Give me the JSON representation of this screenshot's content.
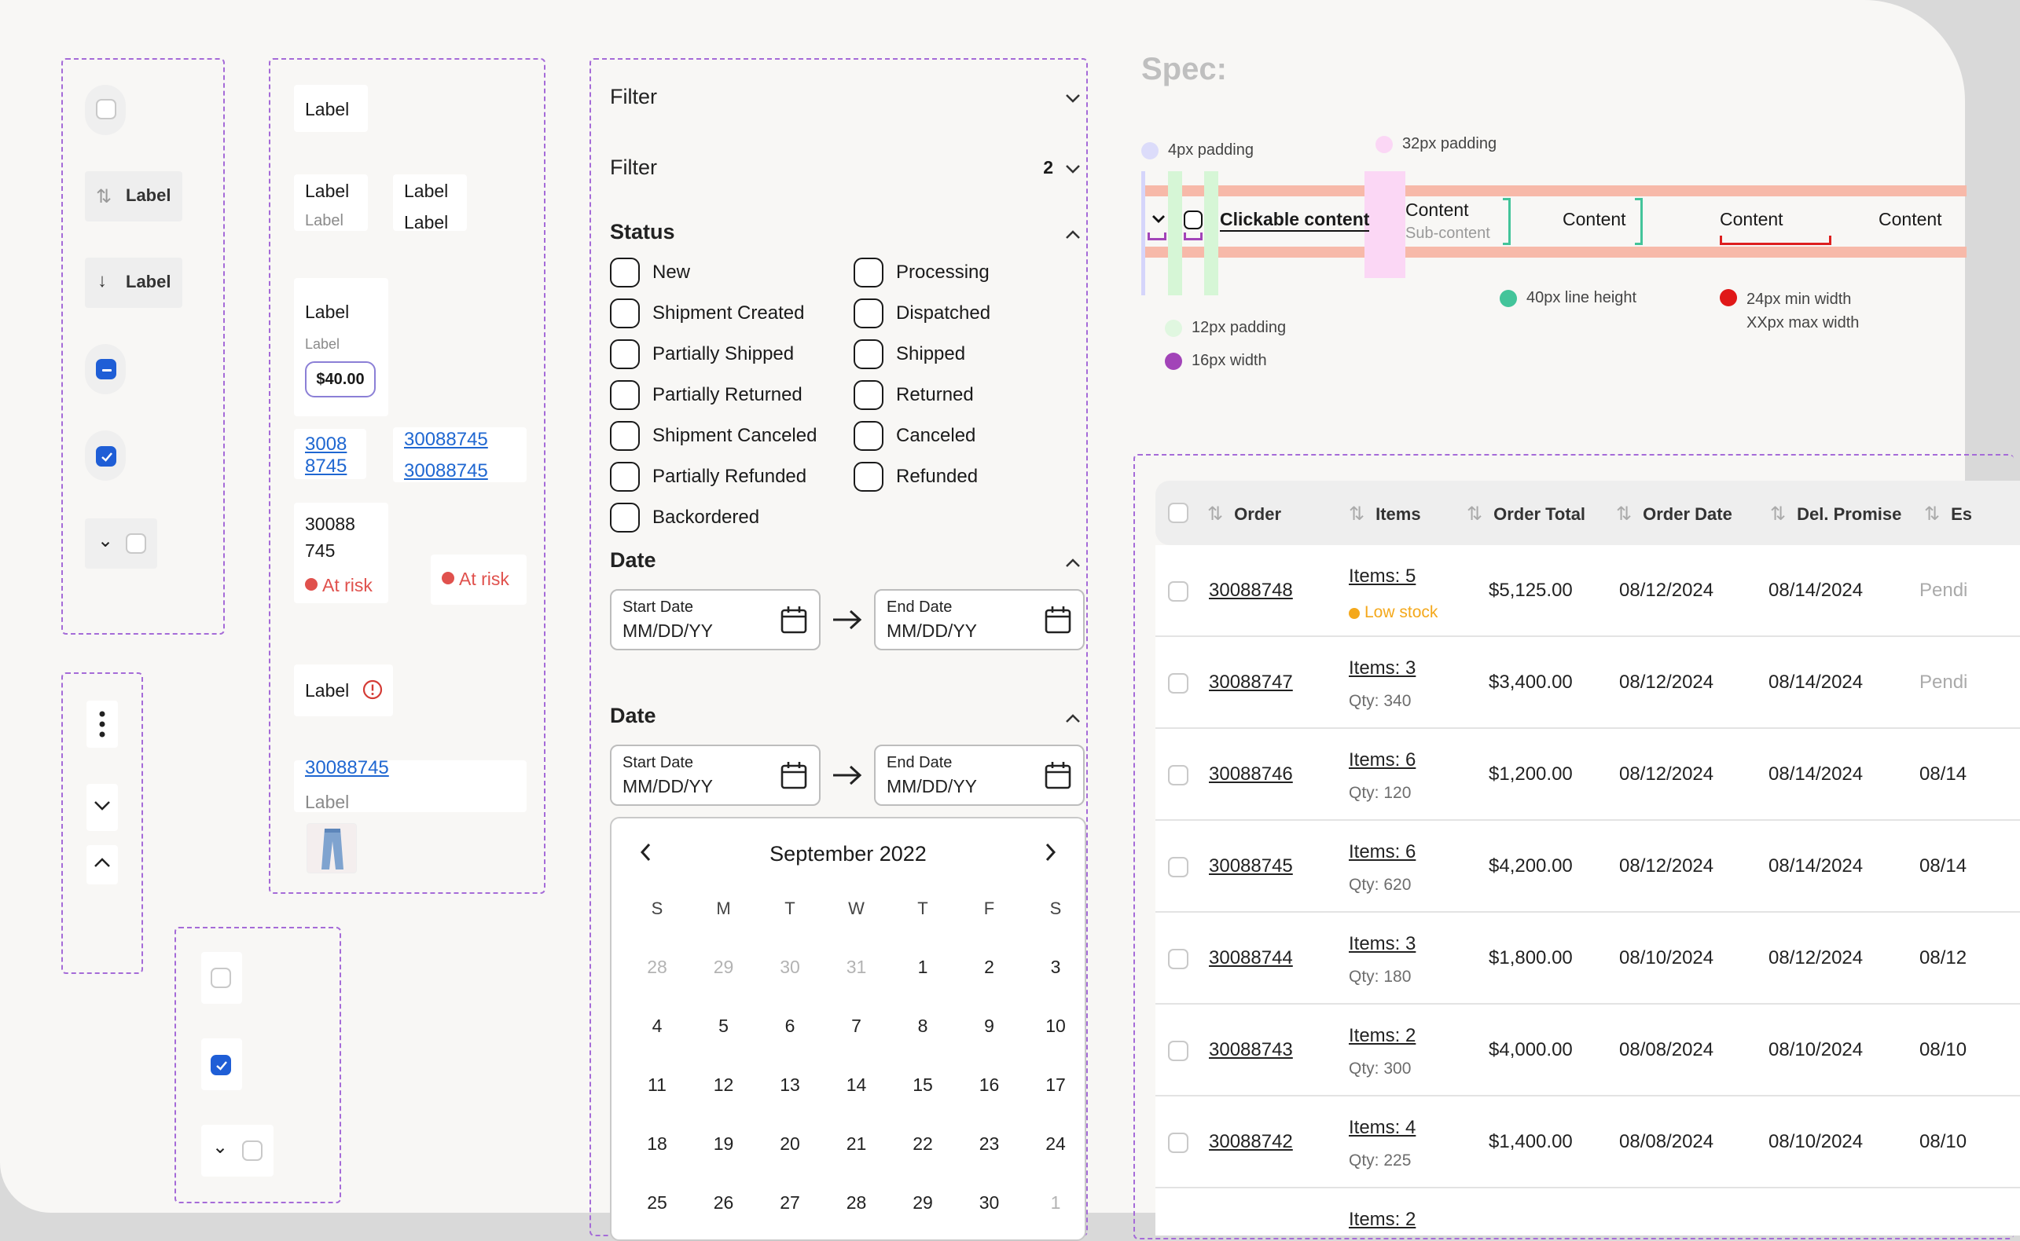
{
  "colors": {
    "accent": "#1f5ed6",
    "link": "#1f67d1",
    "danger": "#e0514d",
    "warning": "#f4a81b",
    "dash": "#a56bd8"
  },
  "col1": {
    "sort_label": "Label",
    "sort_down_label": "Label"
  },
  "col3": {
    "label_single": "Label",
    "label_pair": [
      {
        "top": "Label",
        "bottom": "Label"
      },
      {
        "top": "Label",
        "bottom": "Label"
      }
    ],
    "label_price": {
      "title": "Label",
      "sub": "Label",
      "price": "$40.00"
    },
    "link_wrapped": [
      "3008",
      "8745"
    ],
    "link_pair": [
      "30088745",
      "30088745"
    ],
    "number_wrapped": [
      "30088",
      "745"
    ],
    "risk_text": "At risk",
    "risk_text_2": "At risk",
    "label_alert": "Label",
    "link_label": {
      "link": "30088745",
      "sub": "Label"
    }
  },
  "filter": {
    "filter_1": "Filter",
    "filter_2": "Filter",
    "filter_2_count": "2",
    "status_heading": "Status",
    "status_left": [
      "New",
      "Shipment Created",
      "Partially Shipped",
      "Partially Returned",
      "Shipment Canceled",
      "Partially Refunded",
      "Backordered"
    ],
    "status_right": [
      "Processing",
      "Dispatched",
      "Shipped",
      "Returned",
      "Canceled",
      "Refunded"
    ],
    "date_heading": "Date",
    "date_heading_2": "Date",
    "start_label": "Start Date",
    "end_label": "End Date",
    "placeholder": "MM/DD/YY"
  },
  "calendar": {
    "month": "September 2022",
    "weekdays": [
      "S",
      "M",
      "T",
      "W",
      "T",
      "F",
      "S"
    ],
    "weeks": [
      [
        "28",
        "29",
        "30",
        "31",
        "1",
        "2",
        "3"
      ],
      [
        "4",
        "5",
        "6",
        "7",
        "8",
        "9",
        "10"
      ],
      [
        "11",
        "12",
        "13",
        "14",
        "15",
        "16",
        "17"
      ],
      [
        "18",
        "19",
        "20",
        "21",
        "22",
        "23",
        "24"
      ],
      [
        "25",
        "26",
        "27",
        "28",
        "29",
        "30",
        "1"
      ]
    ]
  },
  "spec": {
    "title": "Spec:",
    "pad4": "4px padding",
    "pad32": "32px padding",
    "clickable": "Clickable content",
    "content": "Content",
    "subcontent": "Sub-content",
    "line40": "40px line height",
    "minw": "24px min width",
    "maxw": "XXpx max width",
    "pad12": "12px padding",
    "w16": "16px width"
  },
  "table": {
    "headers": [
      "Order",
      "Items",
      "Order Total",
      "Order Date",
      "Del. Promise",
      "Es"
    ],
    "rows": [
      {
        "order": "30088748",
        "items": "Items: 5",
        "sub": "Low stock",
        "low": true,
        "total": "$5,125.00",
        "date": "08/12/2024",
        "promise": "08/14/2024",
        "extra": "Pendi"
      },
      {
        "order": "30088747",
        "items": "Items: 3",
        "sub": "Qty: 340",
        "low": false,
        "total": "$3,400.00",
        "date": "08/12/2024",
        "promise": "08/14/2024",
        "extra": "Pendi"
      },
      {
        "order": "30088746",
        "items": "Items: 6",
        "sub": "Qty: 120",
        "low": false,
        "total": "$1,200.00",
        "date": "08/12/2024",
        "promise": "08/14/2024",
        "extra": "08/14"
      },
      {
        "order": "30088745",
        "items": "Items: 6",
        "sub": "Qty: 620",
        "low": false,
        "total": "$4,200.00",
        "date": "08/12/2024",
        "promise": "08/14/2024",
        "extra": "08/14"
      },
      {
        "order": "30088744",
        "items": "Items: 3",
        "sub": "Qty: 180",
        "low": false,
        "total": "$1,800.00",
        "date": "08/10/2024",
        "promise": "08/12/2024",
        "extra": "08/12"
      },
      {
        "order": "30088743",
        "items": "Items: 2",
        "sub": "Qty: 300",
        "low": false,
        "total": "$4,000.00",
        "date": "08/08/2024",
        "promise": "08/10/2024",
        "extra": "08/10"
      },
      {
        "order": "30088742",
        "items": "Items: 4",
        "sub": "Qty: 225",
        "low": false,
        "total": "$1,400.00",
        "date": "08/08/2024",
        "promise": "08/10/2024",
        "extra": "08/10"
      }
    ],
    "partial_row_items": "Items: 2"
  }
}
